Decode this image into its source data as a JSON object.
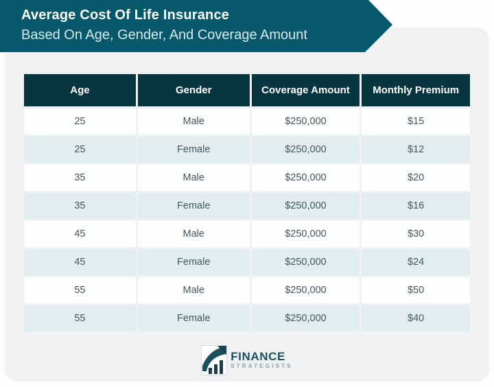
{
  "banner": {
    "title": "Average Cost Of Life Insurance",
    "subtitle": "Based On Age, Gender, And Coverage Amount"
  },
  "chart_data": {
    "type": "table",
    "title": "Average Cost Of Life Insurance Based On Age, Gender, And Coverage Amount",
    "columns": [
      "Age",
      "Gender",
      "Coverage Amount",
      "Monthly Premium"
    ],
    "rows": [
      [
        "25",
        "Male",
        "$250,000",
        "$15"
      ],
      [
        "25",
        "Female",
        "$250,000",
        "$12"
      ],
      [
        "35",
        "Male",
        "$250,000",
        "$20"
      ],
      [
        "35",
        "Female",
        "$250,000",
        "$16"
      ],
      [
        "45",
        "Male",
        "$250,000",
        "$30"
      ],
      [
        "45",
        "Female",
        "$250,000",
        "$24"
      ],
      [
        "55",
        "Male",
        "$250,000",
        "$50"
      ],
      [
        "55",
        "Female",
        "$250,000",
        "$40"
      ]
    ],
    "layout": {
      "header_background": "#093540",
      "row_stripe_colors": [
        "#fdfefe",
        "#e2edf0"
      ],
      "grid": "off"
    }
  },
  "footer": {
    "logo_primary": "FINANCE",
    "logo_secondary": "STRATEGISTS",
    "logo_icon": "bar-chart-growth-icon"
  },
  "colors": {
    "banner_teal": "#06586a",
    "header_navy": "#093540",
    "row_alt_blue": "#e2edf0",
    "card_gray": "#f0f1f2",
    "table_text": "#45565e",
    "logo_teal": "#19505f"
  }
}
